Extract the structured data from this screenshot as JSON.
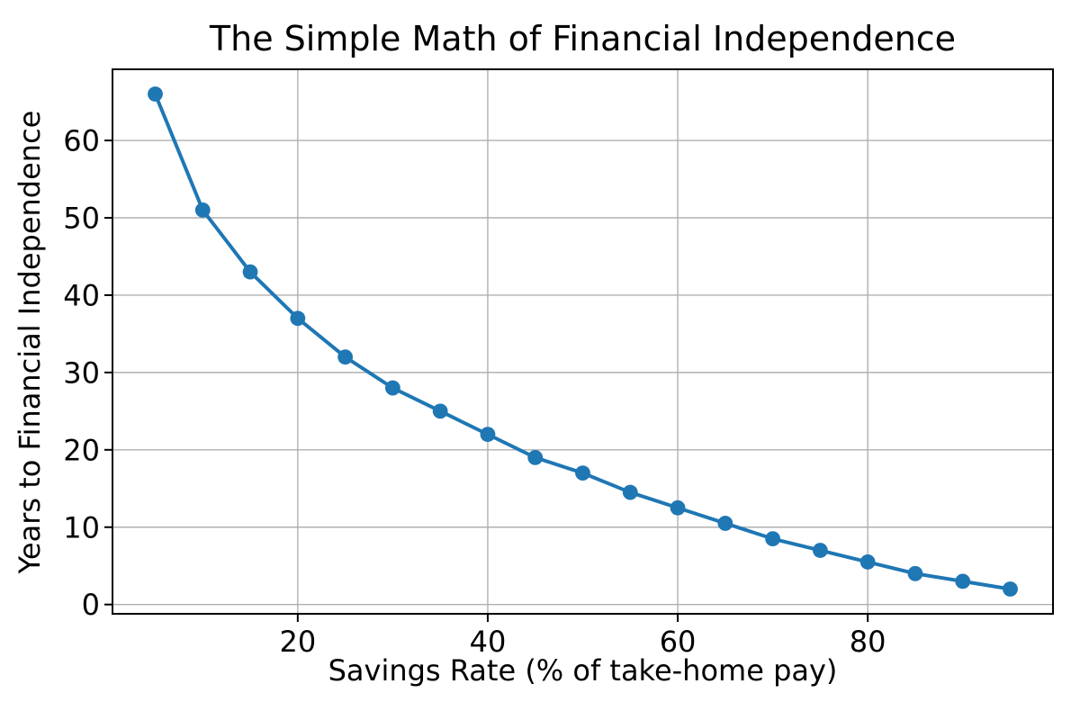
{
  "chart_data": {
    "type": "line",
    "title": "The Simple Math of Financial Independence",
    "xlabel": "Savings Rate (% of take-home pay)",
    "ylabel": "Years to Financial Independence",
    "x": [
      5,
      10,
      15,
      20,
      25,
      30,
      35,
      40,
      45,
      50,
      55,
      60,
      65,
      70,
      75,
      80,
      85,
      90,
      95
    ],
    "y": [
      66,
      51,
      43,
      37,
      32,
      28,
      25,
      22,
      19,
      17,
      14.5,
      12.5,
      10.5,
      8.5,
      7,
      5.5,
      4,
      3,
      2
    ],
    "xticks": [
      20,
      40,
      60,
      80
    ],
    "yticks": [
      0,
      10,
      20,
      30,
      40,
      50,
      60
    ],
    "xlim": [
      0.5,
      99.5
    ],
    "ylim": [
      -1.2,
      69.2
    ],
    "grid": true,
    "legend": false,
    "marker": "circle",
    "line_color": "#1f77b4",
    "marker_color": "#1f77b4",
    "grid_color": "#b0b0b0",
    "spine_color": "#000000",
    "text_color": "#000000",
    "background_color": "#ffffff"
  }
}
